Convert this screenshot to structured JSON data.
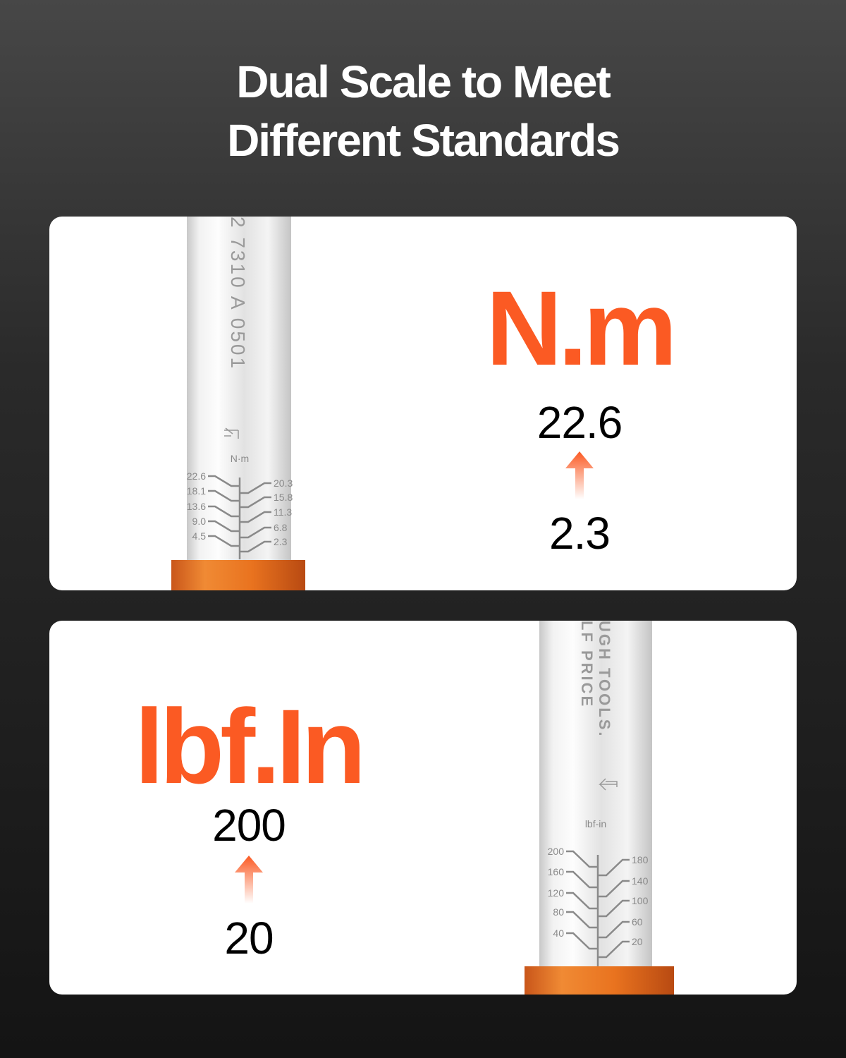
{
  "title": {
    "line1": "Dual Scale to Meet",
    "line2": "Different Standards"
  },
  "panel_nm": {
    "unit": "N.m",
    "max": "22.6",
    "min": "2.3",
    "engraving": "2 7310 A 0501",
    "tube_unit": "N·m",
    "left_ticks": [
      "22.6",
      "18.1",
      "13.6",
      "9.0",
      "4.5"
    ],
    "right_ticks": [
      "20.3",
      "15.8",
      "11.3",
      "6.8",
      "2.3"
    ]
  },
  "panel_lbf": {
    "unit": "lbf.In",
    "max": "200",
    "min": "20",
    "engraving1": "UGH TOOLS.",
    "engraving2": "LF PRICE",
    "tube_unit": "lbf-in",
    "left_ticks": [
      "200",
      "160",
      "120",
      "80",
      "40"
    ],
    "right_ticks": [
      "180",
      "140",
      "100",
      "60",
      "20"
    ]
  },
  "colors": {
    "accent": "#fb5a23",
    "collar": "#e9731f"
  },
  "icons": {
    "arrow": "arrow-up-icon"
  }
}
